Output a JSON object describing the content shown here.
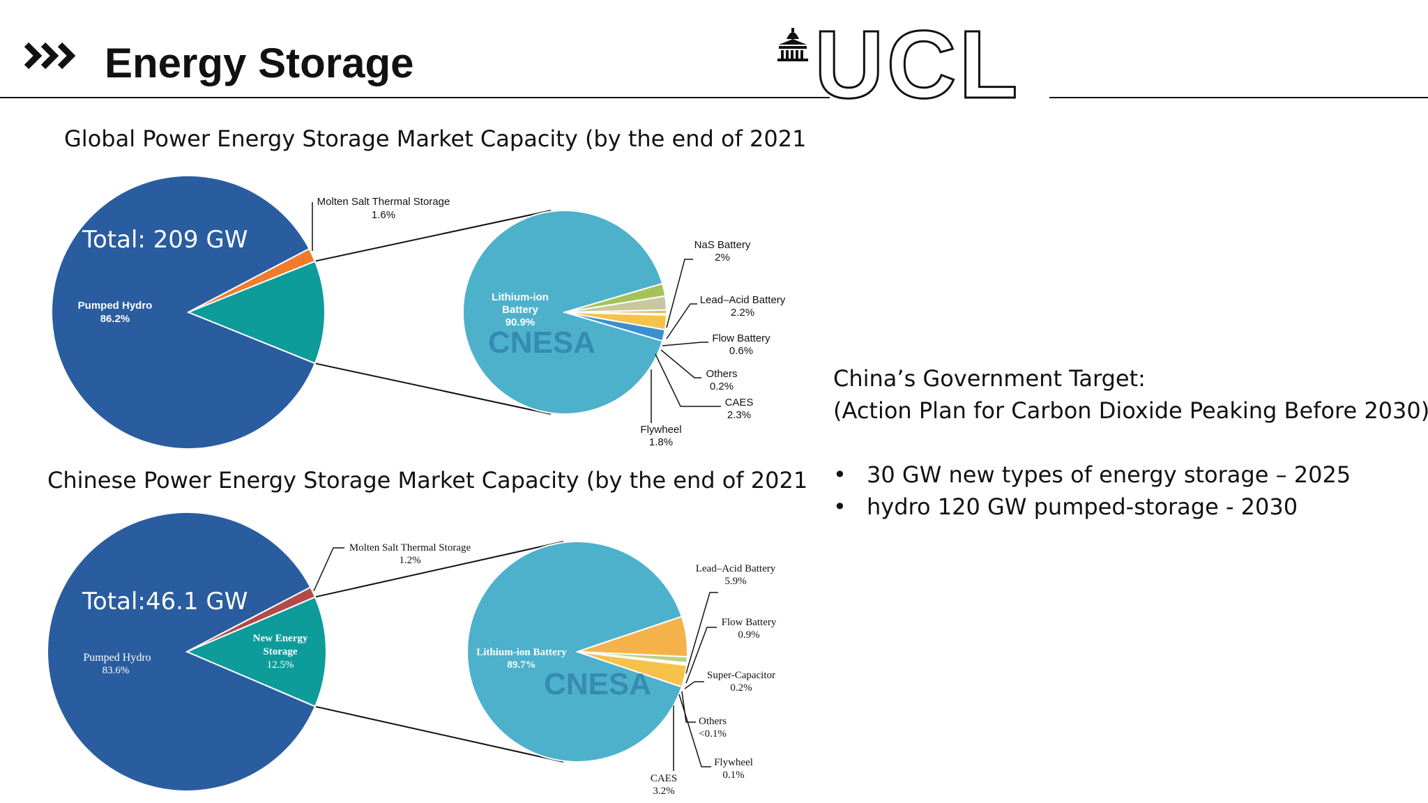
{
  "slide": {
    "title": "Energy Storage",
    "logo": "UCL",
    "colors": {
      "dark_blue": "#2a5d9f",
      "teal": "#0e9c9a",
      "light_blue": "#4db1cc",
      "orange": "#f07c2b",
      "red": "#b24a4a",
      "yellow": "#f6b24a",
      "green": "#a5c25a"
    }
  },
  "target": {
    "heading": "China’s Government Target:",
    "subheading": "(Action Plan for Carbon Dioxide Peaking Before 2030)",
    "bullets": [
      "30 GW new types of energy storage – 2025",
      "hydro 120 GW pumped-storage - 2030"
    ]
  },
  "chart_data": [
    {
      "type": "pie",
      "title": "Global Power Energy Storage Market Capacity (by the end of 2021",
      "total_label": "Total: 209 GW",
      "slices": [
        {
          "name": "Pumped Hydro",
          "label": "86.2%",
          "value": 86.2,
          "color": "#2a5d9f"
        },
        {
          "name": "Molten Salt Thermal Storage",
          "label": "1.6%",
          "value": 1.6,
          "color": "#f07c2b"
        },
        {
          "name": "",
          "label": "",
          "value": 12.2,
          "color": "#0e9c9a"
        }
      ],
      "breakdown": {
        "watermark": "CNESA",
        "slices": [
          {
            "name": "Lithium-ion Battery",
            "label": "90.9%",
            "value": 90.9,
            "color": "#4db1cc"
          },
          {
            "name": "NaS Battery",
            "label": "2%",
            "value": 2.0,
            "color": "#a5c25a"
          },
          {
            "name": "Lead–Acid Battery",
            "label": "2.2%",
            "value": 2.2,
            "color": "#c8c8a0"
          },
          {
            "name": "Flow Battery",
            "label": "0.6%",
            "value": 0.6,
            "color": "#e8b460"
          },
          {
            "name": "Others",
            "label": "0.2%",
            "value": 0.2,
            "color": "#f0d070"
          },
          {
            "name": "CAES",
            "label": "2.3%",
            "value": 2.3,
            "color": "#f6c24a"
          },
          {
            "name": "Flywheel",
            "label": "1.8%",
            "value": 1.8,
            "color": "#3a8fd0"
          }
        ]
      }
    },
    {
      "type": "pie",
      "title": "Chinese Power Energy Storage Market Capacity (by the end of 2021",
      "total_label": "Total:46.1 GW",
      "slices": [
        {
          "name": "Pumped Hydro",
          "label": "83.6%",
          "value": 83.6,
          "color": "#2a5d9f"
        },
        {
          "name": "Molten Salt Thermal Storage",
          "label": "1.2%",
          "value": 1.2,
          "color": "#b24a4a"
        },
        {
          "name": "New Energy Storage",
          "label": "12.5%",
          "value": 12.5,
          "color": "#0e9c9a"
        }
      ],
      "breakdown": {
        "watermark": "CNESA",
        "slices": [
          {
            "name": "Lithium-ion Battery",
            "label": "89.7%",
            "value": 89.7,
            "color": "#4db1cc"
          },
          {
            "name": "Lead–Acid Battery",
            "label": "5.9%",
            "value": 5.9,
            "color": "#f6b24a"
          },
          {
            "name": "Flow Battery",
            "label": "0.9%",
            "value": 0.9,
            "color": "#c0d080"
          },
          {
            "name": "Super-Capacitor",
            "label": "0.2%",
            "value": 0.2,
            "color": "#d0608a"
          },
          {
            "name": "Others",
            "label": "<0.1%",
            "value": 0.05,
            "color": "#d0d0d0"
          },
          {
            "name": "Flywheel",
            "label": "0.1%",
            "value": 0.1,
            "color": "#c0a0d0"
          },
          {
            "name": "CAES",
            "label": "3.2%",
            "value": 3.2,
            "color": "#f6c24a"
          }
        ]
      }
    }
  ]
}
